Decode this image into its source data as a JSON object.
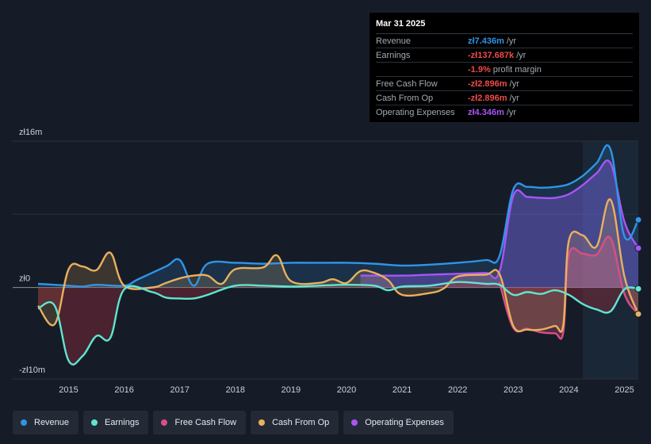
{
  "tooltip": {
    "date": "Mar 31 2025",
    "rows": [
      {
        "label": "Revenue",
        "value": "zł7.436m",
        "unit": "/yr",
        "color": "#2e95e8"
      },
      {
        "label": "Earnings",
        "value": "-zł137.687k",
        "unit": "/yr",
        "color": "#ee4b4b"
      },
      {
        "label": "",
        "value": "-1.9%",
        "unit": "profit margin",
        "color": "#ee4b4b"
      },
      {
        "label": "Free Cash Flow",
        "value": "-zł2.896m",
        "unit": "/yr",
        "color": "#ee4b4b"
      },
      {
        "label": "Cash From Op",
        "value": "-zł2.896m",
        "unit": "/yr",
        "color": "#ee4b4b"
      },
      {
        "label": "Operating Expenses",
        "value": "zł4.346m",
        "unit": "/yr",
        "color": "#a855f7"
      }
    ]
  },
  "legend": [
    {
      "label": "Revenue",
      "color": "#2e95e8"
    },
    {
      "label": "Earnings",
      "color": "#5ee6d0"
    },
    {
      "label": "Free Cash Flow",
      "color": "#d94f86"
    },
    {
      "label": "Cash From Op",
      "color": "#e9b05f"
    },
    {
      "label": "Operating Expenses",
      "color": "#a855f7"
    }
  ],
  "chart_data": {
    "type": "area",
    "y_tick_labels": [
      "zł16m",
      "zł0",
      "-zł10m"
    ],
    "ylim": [
      -10,
      16
    ],
    "xlim": [
      2014.45,
      2025.25
    ],
    "x_tick_labels": [
      "2015",
      "2016",
      "2017",
      "2018",
      "2019",
      "2020",
      "2021",
      "2022",
      "2023",
      "2024",
      "2025"
    ],
    "highlight_from": 2024.25,
    "series": [
      {
        "name": "Revenue",
        "color": "#2e95e8",
        "points": [
          [
            2014.45,
            0.4
          ],
          [
            2015.0,
            0.2
          ],
          [
            2015.25,
            0.1
          ],
          [
            2015.5,
            0.3
          ],
          [
            2016.0,
            0.2
          ],
          [
            2016.25,
            0.9
          ],
          [
            2016.75,
            2.3
          ],
          [
            2017.0,
            3.0
          ],
          [
            2017.25,
            0.2
          ],
          [
            2017.5,
            2.6
          ],
          [
            2018.0,
            2.7
          ],
          [
            2018.5,
            2.6
          ],
          [
            2019.0,
            2.7
          ],
          [
            2019.5,
            2.7
          ],
          [
            2020.0,
            2.7
          ],
          [
            2020.5,
            2.6
          ],
          [
            2021.0,
            2.4
          ],
          [
            2021.5,
            2.5
          ],
          [
            2022.0,
            2.7
          ],
          [
            2022.5,
            3.0
          ],
          [
            2022.75,
            3.4
          ],
          [
            2023.0,
            10.7
          ],
          [
            2023.25,
            11.0
          ],
          [
            2023.5,
            10.9
          ],
          [
            2023.75,
            11.0
          ],
          [
            2024.0,
            11.3
          ],
          [
            2024.25,
            12.2
          ],
          [
            2024.5,
            13.6
          ],
          [
            2024.75,
            15.1
          ],
          [
            2025.0,
            5.6
          ],
          [
            2025.25,
            7.4
          ]
        ]
      },
      {
        "name": "Earnings",
        "color": "#5ee6d0",
        "points": [
          [
            2014.45,
            -2.3
          ],
          [
            2014.75,
            -2.0
          ],
          [
            2015.0,
            -8.0
          ],
          [
            2015.25,
            -7.5
          ],
          [
            2015.5,
            -5.3
          ],
          [
            2015.75,
            -5.5
          ],
          [
            2016.0,
            -0.2
          ],
          [
            2016.5,
            -0.5
          ],
          [
            2016.75,
            -1.1
          ],
          [
            2017.0,
            -1.2
          ],
          [
            2017.25,
            -1.2
          ],
          [
            2017.5,
            -0.8
          ],
          [
            2018.0,
            0.2
          ],
          [
            2018.5,
            0.2
          ],
          [
            2019.0,
            0.1
          ],
          [
            2019.5,
            0.2
          ],
          [
            2020.0,
            0.3
          ],
          [
            2020.5,
            0.2
          ],
          [
            2020.75,
            -0.3
          ],
          [
            2021.0,
            0.1
          ],
          [
            2021.5,
            0.2
          ],
          [
            2022.0,
            0.6
          ],
          [
            2022.5,
            0.4
          ],
          [
            2022.75,
            0.3
          ],
          [
            2023.0,
            -0.8
          ],
          [
            2023.25,
            -0.5
          ],
          [
            2023.5,
            -0.7
          ],
          [
            2023.75,
            -0.3
          ],
          [
            2024.0,
            -0.8
          ],
          [
            2024.25,
            -1.8
          ],
          [
            2024.5,
            -2.4
          ],
          [
            2024.75,
            -2.6
          ],
          [
            2025.0,
            -0.2
          ],
          [
            2025.25,
            -0.14
          ]
        ]
      },
      {
        "name": "Free Cash Flow",
        "color": "#d94f86",
        "points": [
          [
            2022.75,
            0.6
          ],
          [
            2023.0,
            -4.4
          ],
          [
            2023.25,
            -4.5
          ],
          [
            2023.5,
            -4.9
          ],
          [
            2023.75,
            -5.0
          ],
          [
            2023.9,
            -4.9
          ],
          [
            2024.0,
            3.6
          ],
          [
            2024.25,
            3.7
          ],
          [
            2024.5,
            3.6
          ],
          [
            2024.75,
            5.4
          ],
          [
            2025.0,
            -0.7
          ],
          [
            2025.25,
            -2.9
          ]
        ]
      },
      {
        "name": "Cash From Op",
        "color": "#e9b05f",
        "points": [
          [
            2014.45,
            -2.0
          ],
          [
            2014.75,
            -4.0
          ],
          [
            2015.0,
            2.0
          ],
          [
            2015.25,
            2.3
          ],
          [
            2015.5,
            1.9
          ],
          [
            2015.75,
            3.8
          ],
          [
            2016.0,
            0.2
          ],
          [
            2016.5,
            0.0
          ],
          [
            2016.75,
            0.5
          ],
          [
            2017.0,
            1.0
          ],
          [
            2017.25,
            1.3
          ],
          [
            2017.5,
            1.3
          ],
          [
            2017.75,
            0.4
          ],
          [
            2018.0,
            2.0
          ],
          [
            2018.5,
            2.2
          ],
          [
            2018.75,
            3.5
          ],
          [
            2019.0,
            0.7
          ],
          [
            2019.5,
            0.5
          ],
          [
            2019.75,
            0.9
          ],
          [
            2020.0,
            0.5
          ],
          [
            2020.25,
            1.8
          ],
          [
            2020.5,
            1.6
          ],
          [
            2020.75,
            0.8
          ],
          [
            2021.0,
            -0.8
          ],
          [
            2021.5,
            -0.6
          ],
          [
            2021.75,
            -0.1
          ],
          [
            2022.0,
            1.2
          ],
          [
            2022.5,
            1.4
          ],
          [
            2022.75,
            1.5
          ],
          [
            2023.0,
            -4.2
          ],
          [
            2023.25,
            -4.6
          ],
          [
            2023.5,
            -4.6
          ],
          [
            2023.75,
            -4.2
          ],
          [
            2023.9,
            -4.1
          ],
          [
            2024.0,
            5.1
          ],
          [
            2024.25,
            5.7
          ],
          [
            2024.5,
            4.5
          ],
          [
            2024.75,
            9.6
          ],
          [
            2025.0,
            1.2
          ],
          [
            2025.25,
            -2.9
          ]
        ]
      },
      {
        "name": "Operating Expenses",
        "color": "#a855f7",
        "points": [
          [
            2020.25,
            1.3
          ],
          [
            2020.5,
            1.3
          ],
          [
            2021.0,
            1.3
          ],
          [
            2021.5,
            1.4
          ],
          [
            2022.0,
            1.5
          ],
          [
            2022.5,
            1.6
          ],
          [
            2022.75,
            1.7
          ],
          [
            2023.0,
            10.0
          ],
          [
            2023.25,
            9.9
          ],
          [
            2023.5,
            9.8
          ],
          [
            2023.75,
            9.8
          ],
          [
            2024.0,
            10.2
          ],
          [
            2024.25,
            11.2
          ],
          [
            2024.5,
            12.5
          ],
          [
            2024.75,
            13.6
          ],
          [
            2025.0,
            7.2
          ],
          [
            2025.25,
            4.3
          ]
        ]
      }
    ]
  }
}
